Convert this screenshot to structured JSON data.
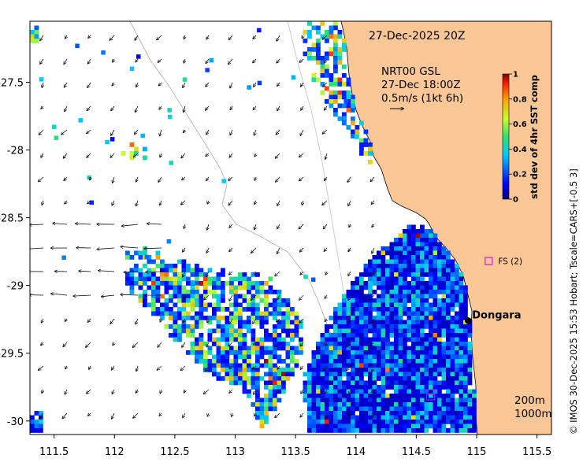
{
  "header": {
    "timestamp": "27-Dec-2025 20Z"
  },
  "current_info": {
    "line1": "NRT00 GSL",
    "line2": "27-Dec 18:00Z",
    "line3": "0.5m/s (1kt 6h)"
  },
  "town": {
    "name": "Dongara",
    "lon": 114.93,
    "lat": -29.26
  },
  "station": {
    "label": "FS (2)",
    "lon": 115.1,
    "lat": -28.82
  },
  "station2": {
    "lon": 114.62,
    "lat": -29.81
  },
  "depth_legend": {
    "line1": "200m",
    "line2": "1000m"
  },
  "colorbar": {
    "label": "std dev of 4hr SST comp",
    "ticks": [
      "0",
      "0.2",
      "0.4",
      "0.6",
      "0.8",
      "1"
    ],
    "min": 0,
    "max": 1
  },
  "credit": "© IMOS 30-Dec-2025 15:53 Hobart; Tscale=CARS+[-0.5 3]",
  "axes": {
    "x_ticks": [
      "111.5",
      "112",
      "112.5",
      "113",
      "113.5",
      "114",
      "114.5",
      "115",
      "115.5"
    ],
    "x_tick_values": [
      111.5,
      112,
      112.5,
      113,
      113.5,
      114,
      114.5,
      115,
      115.5
    ],
    "y_ticks": [
      "-27.5",
      "-28",
      "-28.5",
      "-29",
      "-29.5",
      "-30"
    ],
    "y_tick_values": [
      -27.5,
      -28,
      -28.5,
      -29,
      -29.5,
      -30
    ],
    "lon_range": [
      111.3,
      115.62
    ],
    "lat_range": [
      -30.1,
      -27.05
    ]
  },
  "colors": {
    "land": "#fbc796",
    "coast": "#000000",
    "marker": "#d21ed2"
  }
}
